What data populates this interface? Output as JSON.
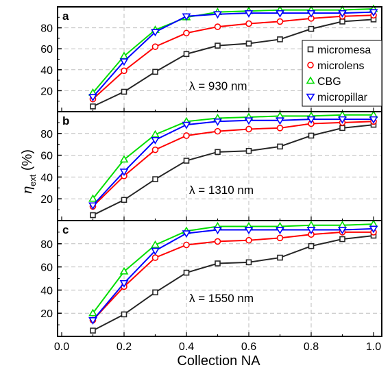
{
  "chart_data": [
    {
      "type": "line",
      "panel_label": "a",
      "annotation": "λ = 930 nm",
      "x": [
        0.1,
        0.2,
        0.3,
        0.4,
        0.5,
        0.6,
        0.7,
        0.8,
        0.9,
        1.0
      ],
      "ylim": [
        0,
        100
      ],
      "yticks": [
        20,
        40,
        60,
        80
      ],
      "grid": true,
      "legend": "right",
      "series": [
        {
          "name": "micromesa",
          "color": "#262626",
          "marker": "square",
          "values": [
            5,
            19,
            38,
            55,
            63,
            65,
            69,
            79,
            86,
            88
          ]
        },
        {
          "name": "microlens",
          "color": "#ff0000",
          "marker": "circle",
          "values": [
            12,
            39,
            62,
            75,
            81,
            84,
            86,
            89,
            91,
            92
          ]
        },
        {
          "name": "CBG",
          "color": "#00dd00",
          "marker": "triangle-up",
          "values": [
            18,
            53,
            78,
            90,
            95,
            96,
            97,
            97,
            97,
            98
          ]
        },
        {
          "name": "micropillar",
          "color": "#0000ff",
          "marker": "triangle-down",
          "values": [
            14,
            48,
            76,
            91,
            93,
            94,
            94,
            94,
            94,
            95
          ]
        }
      ]
    },
    {
      "type": "line",
      "panel_label": "b",
      "annotation": "λ = 1310 nm",
      "x": [
        0.1,
        0.2,
        0.3,
        0.4,
        0.5,
        0.6,
        0.7,
        0.8,
        0.9,
        1.0
      ],
      "ylim": [
        0,
        100
      ],
      "yticks": [
        20,
        40,
        60,
        80
      ],
      "grid": true,
      "series": [
        {
          "name": "micromesa",
          "color": "#262626",
          "marker": "square",
          "values": [
            5,
            19,
            38,
            55,
            63,
            64,
            68,
            78,
            85,
            88
          ]
        },
        {
          "name": "microlens",
          "color": "#ff0000",
          "marker": "circle",
          "values": [
            13,
            41,
            65,
            78,
            82,
            84,
            85,
            89,
            90,
            91
          ]
        },
        {
          "name": "CBG",
          "color": "#00dd00",
          "marker": "triangle-up",
          "values": [
            20,
            56,
            79,
            91,
            94,
            95,
            96,
            96,
            97,
            97
          ]
        },
        {
          "name": "micropillar",
          "color": "#0000ff",
          "marker": "triangle-down",
          "values": [
            14,
            45,
            74,
            88,
            91,
            92,
            92,
            93,
            93,
            93
          ]
        }
      ]
    },
    {
      "type": "line",
      "panel_label": "c",
      "annotation": "λ = 1550 nm",
      "x": [
        0.1,
        0.2,
        0.3,
        0.4,
        0.5,
        0.6,
        0.7,
        0.8,
        0.9,
        1.0
      ],
      "xlim": [
        0.0,
        1.0
      ],
      "xticks": [
        "0.0",
        "0.2",
        "0.4",
        "0.6",
        "0.8",
        "1.0"
      ],
      "ylim": [
        0,
        100
      ],
      "yticks": [
        20,
        40,
        60,
        80
      ],
      "grid": true,
      "series": [
        {
          "name": "micromesa",
          "color": "#262626",
          "marker": "square",
          "values": [
            5,
            19,
            38,
            55,
            63,
            64,
            68,
            78,
            84,
            87
          ]
        },
        {
          "name": "microlens",
          "color": "#ff0000",
          "marker": "circle",
          "values": [
            14,
            43,
            68,
            79,
            82,
            83,
            85,
            88,
            90,
            90
          ]
        },
        {
          "name": "CBG",
          "color": "#00dd00",
          "marker": "triangle-up",
          "values": [
            20,
            56,
            79,
            91,
            95,
            95,
            95,
            96,
            96,
            97
          ]
        },
        {
          "name": "micropillar",
          "color": "#0000ff",
          "marker": "triangle-down",
          "values": [
            14,
            46,
            74,
            89,
            92,
            92,
            92,
            92,
            92,
            93
          ]
        }
      ]
    }
  ],
  "xlabel": "Collection NA",
  "ylabel_main": "η",
  "ylabel_sub": "ext",
  "ylabel_unit": " (%)"
}
